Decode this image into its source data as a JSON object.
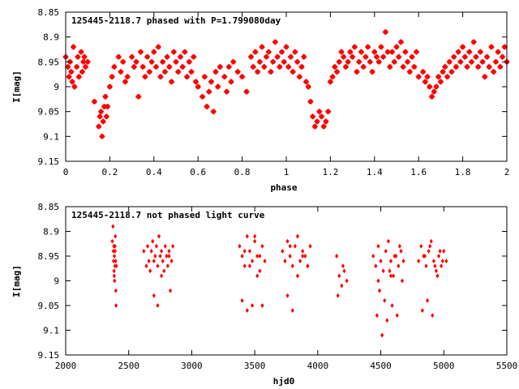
{
  "colors": {
    "points": "#ff0000",
    "axes": "#000000",
    "background": "#ffffff"
  },
  "chart_data": [
    {
      "type": "scatter",
      "title": "125445-2118.7 phased with P=1.799080day",
      "xlabel": "phase",
      "ylabel": "I[mag]",
      "xlim": [
        0,
        2
      ],
      "ylim": [
        8.85,
        9.15
      ],
      "y_inverted": true,
      "xticks": [
        0,
        0.2,
        0.4,
        0.6,
        0.8,
        1,
        1.2,
        1.4,
        1.6,
        1.8,
        2
      ],
      "xtick_labels": [
        "0",
        "0.2",
        "0.4",
        "0.6",
        "0.8",
        "1",
        "1.2",
        "1.4",
        "1.6",
        "1.8",
        "2"
      ],
      "yticks": [
        8.85,
        8.9,
        8.95,
        9,
        9.05,
        9.1,
        9.15
      ],
      "ytick_labels": [
        "8.85",
        "8.9",
        "8.95",
        "9",
        "9.05",
        "9.1",
        "9.15"
      ],
      "marker": "star",
      "series": [
        {
          "x": [
            0.0,
            0.01,
            0.015,
            0.02,
            0.025,
            0.03,
            0.035,
            0.04,
            0.05,
            0.055,
            0.06,
            0.07,
            0.075,
            0.08,
            0.085,
            0.09,
            0.1,
            0.13,
            0.15,
            0.155,
            0.16,
            0.165,
            0.17,
            0.175,
            0.18,
            0.185,
            0.19,
            0.2,
            0.21,
            0.22,
            0.24,
            0.25,
            0.26,
            0.27,
            0.28,
            0.3,
            0.31,
            0.32,
            0.33,
            0.34,
            0.35,
            0.36,
            0.37,
            0.38,
            0.39,
            0.4,
            0.41,
            0.42,
            0.43,
            0.44,
            0.45,
            0.46,
            0.47,
            0.48,
            0.49,
            0.5,
            0.51,
            0.52,
            0.53,
            0.54,
            0.55,
            0.56,
            0.57,
            0.58,
            0.59,
            0.6,
            0.62,
            0.63,
            0.64,
            0.65,
            0.66,
            0.67,
            0.68,
            0.69,
            0.7,
            0.72,
            0.73,
            0.74,
            0.75,
            0.76,
            0.78,
            0.8,
            0.82,
            0.84,
            0.85,
            0.86,
            0.87,
            0.88,
            0.89,
            0.9,
            0.91,
            0.92,
            0.93,
            0.94,
            0.95,
            0.96,
            0.97,
            0.98,
            0.99,
            1.0,
            1.01,
            1.02,
            1.03,
            1.04,
            1.05,
            1.06,
            1.07,
            1.08,
            1.09,
            1.1,
            1.11,
            1.12,
            1.13,
            1.14,
            1.15,
            1.16,
            1.17,
            1.18,
            1.19,
            1.2,
            1.21,
            1.22,
            1.23,
            1.24,
            1.25,
            1.26,
            1.27,
            1.28,
            1.29,
            1.3,
            1.31,
            1.32,
            1.33,
            1.34,
            1.35,
            1.36,
            1.37,
            1.38,
            1.39,
            1.4,
            1.41,
            1.42,
            1.43,
            1.44,
            1.45,
            1.46,
            1.47,
            1.48,
            1.49,
            1.5,
            1.51,
            1.52,
            1.53,
            1.54,
            1.55,
            1.56,
            1.57,
            1.58,
            1.59,
            1.6,
            1.62,
            1.63,
            1.64,
            1.65,
            1.66,
            1.67,
            1.68,
            1.69,
            1.7,
            1.71,
            1.72,
            1.73,
            1.74,
            1.75,
            1.76,
            1.77,
            1.78,
            1.79,
            1.8,
            1.81,
            1.82,
            1.83,
            1.84,
            1.85,
            1.86,
            1.87,
            1.88,
            1.89,
            1.9,
            1.91,
            1.92,
            1.93,
            1.94,
            1.95,
            1.96,
            1.97,
            1.98,
            1.99,
            2.0
          ],
          "y": [
            8.94,
            8.96,
            8.98,
            8.95,
            8.97,
            8.99,
            8.92,
            9.0,
            8.96,
            8.94,
            8.98,
            8.93,
            8.97,
            8.95,
            8.94,
            8.96,
            8.95,
            9.03,
            9.08,
            9.06,
            9.05,
            9.1,
            9.07,
            9.04,
            9.02,
            9.06,
            9.04,
            9.0,
            8.98,
            8.96,
            8.94,
            8.97,
            8.95,
            8.99,
            8.98,
            8.94,
            8.96,
            8.95,
            9.02,
            8.93,
            8.96,
            8.98,
            8.94,
            8.97,
            8.95,
            8.93,
            8.96,
            8.92,
            8.98,
            8.95,
            8.97,
            8.94,
            8.96,
            8.99,
            8.93,
            8.95,
            8.97,
            8.94,
            8.96,
            8.93,
            8.98,
            8.95,
            8.97,
            8.94,
            8.99,
            9.0,
            9.02,
            8.98,
            9.04,
            9.01,
            8.99,
            9.05,
            8.97,
            9.0,
            8.96,
            8.98,
            9.01,
            8.96,
            8.99,
            8.95,
            8.97,
            8.98,
            9.01,
            8.94,
            8.96,
            8.93,
            8.97,
            8.95,
            8.92,
            8.96,
            8.94,
            8.93,
            8.97,
            8.95,
            8.91,
            8.94,
            8.96,
            8.93,
            8.95,
            8.92,
            8.96,
            8.94,
            8.97,
            8.93,
            8.95,
            8.98,
            8.96,
            8.94,
            8.99,
            9.0,
            9.03,
            9.06,
            9.08,
            9.07,
            9.05,
            9.06,
            9.08,
            9.07,
            9.05,
            8.99,
            8.98,
            8.96,
            8.97,
            8.95,
            8.93,
            8.94,
            8.96,
            8.95,
            8.93,
            8.94,
            8.92,
            8.97,
            8.95,
            8.93,
            8.96,
            8.94,
            8.92,
            8.95,
            8.97,
            8.93,
            8.94,
            8.95,
            8.92,
            8.94,
            8.89,
            8.93,
            8.96,
            8.93,
            8.95,
            8.92,
            8.94,
            8.91,
            8.96,
            8.93,
            8.95,
            8.97,
            8.94,
            8.96,
            8.93,
            8.98,
            8.97,
            8.99,
            8.98,
            9.0,
            9.02,
            9.01,
            9.0,
            8.98,
            8.99,
            8.97,
            8.96,
            8.98,
            8.95,
            8.97,
            8.94,
            8.96,
            8.93,
            8.95,
            8.92,
            8.94,
            8.96,
            8.93,
            8.95,
            8.91,
            8.94,
            8.96,
            8.93,
            8.95,
            8.98,
            8.94,
            8.96,
            8.92,
            8.97,
            8.95,
            8.93,
            8.96,
            8.94,
            8.92,
            8.95
          ]
        }
      ]
    },
    {
      "type": "scatter",
      "title": "125445-2118.7 not phased light curve",
      "xlabel": "hjd0",
      "ylabel": "I[mag]",
      "xlim": [
        2000,
        5500
      ],
      "ylim": [
        8.85,
        9.15
      ],
      "y_inverted": true,
      "xticks": [
        2000,
        2500,
        3000,
        3500,
        4000,
        4500,
        5000,
        5500
      ],
      "xtick_labels": [
        "2000",
        "2500",
        "3000",
        "3500",
        "4000",
        "4500",
        "5000",
        "5500"
      ],
      "yticks": [
        8.85,
        8.9,
        8.95,
        9,
        9.05,
        9.1,
        9.15
      ],
      "ytick_labels": [
        "8.85",
        "8.9",
        "8.95",
        "9",
        "9.05",
        "9.1",
        "9.15"
      ],
      "marker": "diamond",
      "series": [
        {
          "x": [
            2370,
            2375,
            2378,
            2380,
            2382,
            2384,
            2386,
            2388,
            2390,
            2392,
            2394,
            2396,
            2398,
            2400,
            2402,
            2385,
            2391,
            2620,
            2640,
            2650,
            2660,
            2670,
            2680,
            2690,
            2700,
            2710,
            2720,
            2730,
            2740,
            2750,
            2760,
            2770,
            2780,
            2790,
            2800,
            2810,
            2820,
            2830,
            2840,
            2850,
            2700,
            2730,
            2760,
            2820,
            3380,
            3400,
            3420,
            3440,
            3460,
            3480,
            3500,
            3520,
            3540,
            3560,
            3580,
            3400,
            3440,
            3480,
            3520,
            3560,
            3420,
            3460,
            3500,
            3540,
            3720,
            3740,
            3760,
            3780,
            3800,
            3820,
            3840,
            3860,
            3880,
            3900,
            3920,
            3940,
            3760,
            3800,
            3840,
            3880,
            3920,
            3780,
            4150,
            4170,
            4190,
            4210,
            4230,
            4160,
            4200,
            4440,
            4460,
            4480,
            4500,
            4520,
            4540,
            4560,
            4580,
            4600,
            4620,
            4640,
            4660,
            4680,
            4470,
            4510,
            4550,
            4590,
            4630,
            4670,
            4490,
            4530,
            4570,
            4610,
            4650,
            4480,
            4580,
            4800,
            4820,
            4840,
            4860,
            4880,
            4900,
            4920,
            4940,
            4960,
            4980,
            5000,
            5020,
            4830,
            4870,
            4910,
            4950,
            4990,
            4850,
            4890,
            4930,
            4970
          ],
          "y": [
            8.92,
            8.89,
            8.94,
            8.96,
            8.93,
            8.98,
            8.95,
            9.0,
            8.97,
            8.94,
            8.91,
            8.96,
            9.02,
            9.05,
            8.97,
            8.99,
            8.93,
            8.94,
            8.97,
            8.93,
            8.96,
            8.98,
            8.94,
            8.92,
            8.96,
            8.95,
            8.93,
            8.97,
            8.91,
            8.95,
            8.94,
            8.96,
            8.98,
            8.93,
            8.95,
            8.97,
            8.94,
            9.02,
            8.96,
            8.93,
            9.03,
            9.05,
            8.99,
            8.95,
            8.93,
            8.95,
            8.97,
            8.91,
            8.94,
            8.96,
            8.92,
            8.95,
            8.98,
            8.93,
            8.96,
            9.04,
            9.06,
            9.05,
            8.99,
            9.05,
            8.94,
            8.97,
            8.91,
            8.95,
            8.94,
            8.96,
            8.92,
            8.95,
            8.97,
            8.93,
            8.91,
            8.96,
            8.94,
            8.95,
            8.97,
            8.93,
            9.03,
            9.06,
            8.99,
            8.95,
            8.97,
            8.93,
            8.95,
            8.99,
            9.01,
            8.98,
            9.0,
            9.03,
            8.97,
            8.95,
            8.97,
            8.93,
            8.96,
            8.98,
            8.94,
            8.92,
            8.96,
            8.99,
            8.95,
            8.97,
            8.94,
            8.96,
            9.07,
            9.11,
            9.08,
            9.05,
            9.07,
            9.0,
            9.02,
            9.04,
            8.98,
            8.95,
            8.93,
            9.0,
            8.99,
            8.96,
            8.93,
            8.95,
            8.97,
            8.94,
            8.92,
            8.96,
            8.98,
            8.95,
            8.97,
            8.94,
            8.96,
            9.06,
            9.04,
            9.07,
            8.99,
            8.96,
            8.95,
            8.93,
            8.97,
            8.94
          ]
        }
      ]
    }
  ]
}
